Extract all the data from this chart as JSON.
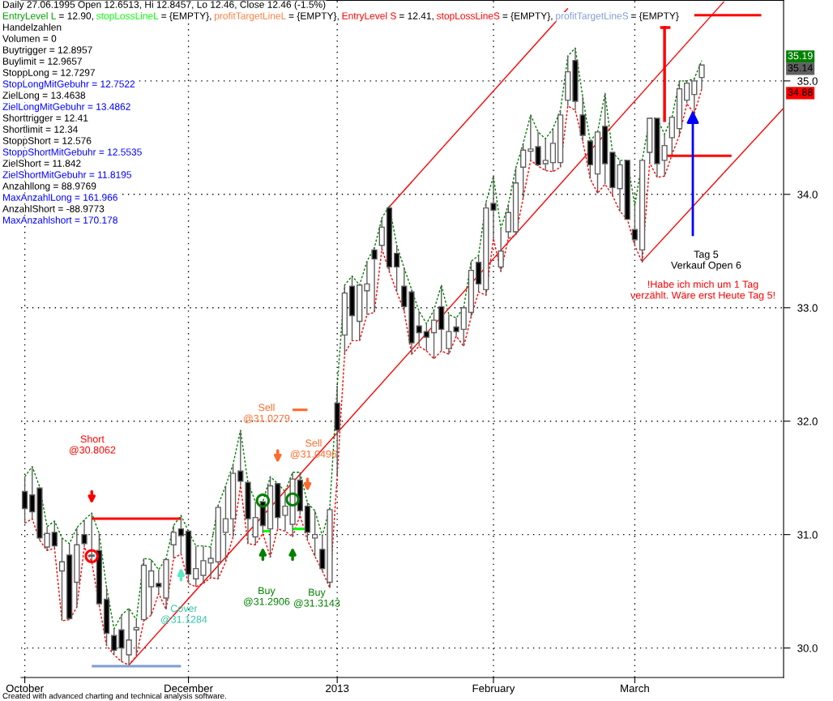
{
  "chart_data": {
    "type": "candlestick",
    "title": "Daily 27.06.1995 Open 12.6513, Hi 12.8457, Lo 12.46, Close 12.46 (-1.5%)",
    "categories": [
      "October",
      null,
      null,
      null,
      null,
      null,
      null,
      null,
      null,
      null,
      null,
      null,
      null,
      null,
      null,
      null,
      null,
      null,
      null,
      null,
      null,
      null,
      "December",
      null,
      null,
      null,
      null,
      null,
      null,
      null,
      null,
      null,
      null,
      null,
      null,
      null,
      null,
      null,
      null,
      null,
      null,
      null,
      "2013",
      null,
      null,
      null,
      null,
      null,
      null,
      null,
      null,
      null,
      null,
      null,
      null,
      null,
      null,
      null,
      null,
      null,
      null,
      null,
      null,
      "February",
      null,
      null,
      null,
      null,
      null,
      null,
      null,
      null,
      null,
      null,
      null,
      null,
      null,
      null,
      null,
      null,
      null,
      null,
      "March",
      null,
      null,
      null,
      null,
      null,
      null,
      null,
      null,
      null,
      null,
      null,
      null,
      null,
      null,
      null,
      null,
      null,
      null,
      null,
      null
    ],
    "ohlc": [
      [
        31.38,
        31.51,
        31.1,
        31.23
      ],
      [
        31.35,
        31.6,
        31.14,
        31.2
      ],
      [
        31.41,
        31.42,
        30.95,
        30.97
      ],
      [
        30.89,
        31.07,
        30.86,
        31.01
      ],
      [
        31.02,
        31.12,
        30.88,
        30.9
      ],
      [
        30.68,
        30.97,
        30.24,
        30.76
      ],
      [
        30.82,
        30.92,
        30.25,
        30.26
      ],
      [
        30.58,
        31.06,
        30.36,
        30.91
      ],
      [
        31.0,
        31.13,
        30.89,
        30.92
      ],
      [
        30.81,
        31.19,
        30.76,
        30.82
      ],
      [
        30.86,
        31.01,
        30.38,
        30.39
      ],
      [
        30.43,
        30.53,
        30.02,
        30.13
      ],
      [
        30.11,
        30.17,
        29.94,
        29.98
      ],
      [
        30.16,
        30.29,
        29.88,
        30.0
      ],
      [
        29.94,
        30.35,
        29.85,
        30.07
      ],
      [
        30.16,
        30.25,
        29.93,
        30.18
      ],
      [
        30.25,
        30.79,
        30.24,
        30.73
      ],
      [
        30.54,
        30.78,
        30.29,
        30.68
      ],
      [
        30.57,
        30.69,
        30.48,
        30.54
      ],
      [
        30.44,
        30.79,
        30.34,
        30.78
      ],
      [
        30.91,
        31.08,
        30.79,
        31.02
      ],
      [
        31.05,
        31.17,
        30.83,
        30.99
      ],
      [
        31.03,
        31.03,
        30.57,
        30.65
      ],
      [
        30.61,
        30.9,
        30.54,
        30.7
      ],
      [
        30.64,
        30.9,
        30.57,
        30.77
      ],
      [
        30.75,
        30.89,
        30.62,
        30.79
      ],
      [
        30.76,
        31.26,
        30.61,
        31.24
      ],
      [
        31.02,
        31.43,
        30.76,
        31.14
      ],
      [
        31.14,
        31.62,
        30.98,
        31.54
      ],
      [
        31.56,
        31.92,
        31.43,
        31.47
      ],
      [
        31.46,
        31.46,
        30.92,
        31.14
      ],
      [
        30.98,
        31.29,
        30.91,
        31.15
      ],
      [
        31.29,
        31.29,
        31.01,
        31.08
      ],
      [
        31.05,
        31.51,
        30.8,
        31.43
      ],
      [
        31.45,
        31.45,
        31.05,
        31.15
      ],
      [
        31.17,
        31.38,
        31.03,
        31.25
      ],
      [
        31.09,
        31.55,
        30.98,
        31.49
      ],
      [
        31.48,
        31.55,
        31.17,
        31.21
      ],
      [
        31.25,
        31.28,
        30.95,
        31.02
      ],
      [
        30.97,
        31.21,
        30.81,
        31.0
      ],
      [
        30.87,
        30.99,
        30.68,
        30.7
      ],
      [
        30.58,
        31.24,
        30.53,
        31.22
      ],
      [
        32.16,
        32.31,
        31.52,
        31.92
      ],
      [
        32.76,
        33.2,
        32.6,
        33.13
      ],
      [
        33.19,
        33.28,
        32.71,
        32.93
      ],
      [
        32.88,
        33.2,
        32.71,
        33.2
      ],
      [
        33.15,
        33.41,
        32.94,
        33.21
      ],
      [
        33.51,
        33.53,
        32.96,
        33.43
      ],
      [
        33.55,
        33.79,
        33.52,
        33.71
      ],
      [
        33.88,
        33.9,
        33.32,
        33.36
      ],
      [
        33.48,
        33.55,
        33.14,
        33.36
      ],
      [
        33.19,
        33.35,
        32.97,
        33.01
      ],
      [
        33.14,
        33.16,
        32.59,
        32.69
      ],
      [
        32.84,
        32.97,
        32.66,
        32.78
      ],
      [
        32.79,
        32.86,
        32.62,
        32.74
      ],
      [
        32.78,
        32.98,
        32.55,
        32.89
      ],
      [
        33.01,
        33.2,
        32.62,
        32.81
      ],
      [
        32.64,
        32.94,
        32.59,
        32.79
      ],
      [
        32.83,
        32.91,
        32.75,
        32.79
      ],
      [
        32.81,
        33.0,
        32.66,
        33.0
      ],
      [
        32.96,
        33.41,
        32.92,
        33.33
      ],
      [
        33.4,
        33.46,
        33.14,
        33.21
      ],
      [
        33.16,
        33.93,
        33.11,
        33.88
      ],
      [
        33.92,
        34.16,
        33.61,
        33.86
      ],
      [
        33.36,
        33.7,
        33.32,
        33.5
      ],
      [
        33.67,
        33.91,
        33.61,
        33.84
      ],
      [
        33.67,
        34.23,
        33.64,
        34.1
      ],
      [
        34.24,
        34.45,
        33.97,
        34.39
      ],
      [
        34.38,
        34.7,
        34.3,
        34.4
      ],
      [
        34.42,
        34.55,
        34.25,
        34.26
      ],
      [
        34.27,
        34.49,
        34.21,
        34.3
      ],
      [
        34.28,
        34.58,
        34.2,
        34.45
      ],
      [
        34.28,
        34.74,
        34.24,
        34.7
      ],
      [
        34.83,
        35.22,
        34.78,
        35.08
      ],
      [
        35.18,
        35.29,
        34.74,
        34.82
      ],
      [
        34.7,
        34.86,
        34.47,
        34.52
      ],
      [
        34.47,
        34.47,
        34.14,
        34.26
      ],
      [
        34.18,
        34.55,
        34.01,
        34.55
      ],
      [
        34.6,
        34.89,
        34.09,
        34.27
      ],
      [
        34.37,
        34.37,
        33.99,
        34.06
      ],
      [
        34.05,
        34.3,
        33.85,
        34.26
      ],
      [
        34.3,
        34.3,
        33.78,
        33.78
      ],
      [
        33.69,
        33.9,
        33.55,
        33.6
      ],
      [
        33.51,
        34.3,
        33.4,
        34.3
      ],
      [
        34.37,
        34.67,
        34.28,
        34.67
      ],
      [
        34.67,
        34.67,
        34.15,
        34.27
      ],
      [
        34.3,
        34.53,
        34.16,
        34.43
      ],
      [
        34.5,
        34.68,
        34.35,
        34.68
      ],
      [
        34.58,
        35.0,
        34.52,
        34.93
      ],
      [
        34.83,
        35.0,
        34.8,
        34.98
      ],
      [
        34.88,
        35.02,
        34.71,
        35.0
      ],
      [
        35.03,
        35.14,
        34.93,
        35.14
      ],
      null,
      null,
      null,
      null,
      null,
      null,
      null,
      null,
      null,
      null,
      null
    ],
    "series": [
      {
        "type": "line",
        "color": "#008000",
        "line_style": "dashed",
        "values": [
          31.51,
          31.6,
          31.42,
          31.07,
          31.12,
          30.97,
          30.92,
          31.06,
          31.13,
          31.19,
          31.01,
          30.53,
          30.17,
          30.29,
          30.35,
          30.25,
          30.79,
          30.78,
          30.69,
          30.79,
          31.08,
          31.17,
          31.03,
          30.9,
          30.9,
          30.89,
          31.26,
          31.43,
          31.62,
          31.92,
          31.46,
          31.29,
          31.29,
          31.51,
          31.45,
          31.38,
          31.55,
          31.55,
          31.28,
          31.21,
          30.99,
          31.24,
          32.31,
          33.2,
          33.28,
          33.2,
          33.41,
          33.53,
          33.79,
          33.9,
          33.55,
          33.35,
          33.16,
          32.97,
          32.86,
          32.98,
          33.2,
          32.94,
          32.91,
          33.0,
          33.41,
          33.46,
          33.93,
          34.16,
          33.7,
          33.91,
          34.23,
          34.45,
          34.7,
          34.55,
          34.49,
          34.58,
          34.74,
          35.22,
          35.29,
          34.86,
          34.47,
          34.55,
          34.89,
          34.37,
          34.3,
          34.3,
          33.9,
          34.3,
          34.67,
          34.67,
          34.53,
          34.68,
          35.0,
          35.0,
          35.02,
          35.18,
          null,
          null,
          null,
          null,
          null,
          null,
          null,
          null,
          null,
          null,
          null
        ]
      },
      {
        "type": "line",
        "color": "#ff0000",
        "line_style": "dashed",
        "values": [
          31.1,
          31.14,
          30.95,
          30.86,
          30.88,
          30.24,
          30.25,
          30.36,
          30.89,
          30.76,
          30.38,
          30.02,
          29.94,
          29.88,
          29.85,
          29.93,
          30.24,
          30.29,
          30.48,
          30.34,
          30.79,
          30.83,
          30.57,
          30.54,
          30.57,
          30.62,
          30.61,
          30.76,
          30.98,
          31.43,
          30.92,
          30.91,
          31.01,
          30.8,
          31.05,
          31.03,
          30.98,
          31.17,
          30.95,
          30.81,
          30.68,
          30.53,
          31.52,
          32.6,
          32.71,
          32.71,
          32.94,
          32.96,
          33.52,
          33.32,
          33.14,
          32.97,
          32.59,
          32.66,
          32.62,
          32.55,
          32.62,
          32.59,
          32.75,
          32.66,
          32.92,
          33.14,
          33.11,
          33.61,
          33.32,
          33.61,
          33.64,
          33.97,
          34.3,
          34.25,
          34.21,
          34.2,
          34.24,
          34.78,
          34.74,
          34.47,
          34.14,
          34.01,
          34.09,
          33.99,
          33.85,
          33.78,
          33.55,
          33.4,
          34.28,
          34.15,
          34.16,
          34.35,
          34.52,
          34.8,
          34.71,
          34.93,
          null,
          null,
          null,
          null,
          null,
          null,
          null,
          null,
          null,
          null,
          null
        ]
      },
      {
        "type": "line",
        "color": "#ff0000",
        "line_style": "solid",
        "values": [
          null,
          null,
          null,
          null,
          null,
          null,
          null,
          null,
          null,
          null,
          null,
          null,
          null,
          null,
          null,
          null,
          null,
          null,
          null,
          null,
          null,
          null,
          null,
          null,
          null,
          null,
          null,
          null,
          null,
          null,
          null,
          null,
          null,
          null,
          null,
          null,
          null,
          null,
          null,
          null,
          null,
          null,
          null,
          null,
          null,
          null,
          null,
          null,
          null,
          33.89,
          null,
          null,
          null,
          null,
          null,
          null,
          null,
          null,
          null,
          null,
          null,
          null,
          null,
          null,
          null,
          null,
          null,
          null,
          null,
          null,
          null,
          null,
          null,
          35.64,
          null,
          null,
          null,
          null,
          null,
          null,
          null,
          null,
          null,
          null,
          null,
          null,
          null,
          null,
          null,
          null,
          null,
          null,
          null,
          null,
          null,
          null,
          null,
          null,
          null,
          null,
          null,
          null,
          null
        ]
      },
      {
        "type": "line",
        "color": "#ff0000",
        "line_style": "solid",
        "values": [
          null,
          null,
          null,
          null,
          null,
          null,
          null,
          null,
          null,
          null,
          null,
          null,
          null,
          null,
          29.85,
          null,
          null,
          null,
          null,
          null,
          null,
          null,
          null,
          null,
          null,
          null,
          null,
          null,
          null,
          null,
          null,
          null,
          null,
          null,
          null,
          null,
          null,
          null,
          null,
          null,
          null,
          null,
          null,
          null,
          null,
          null,
          null,
          null,
          null,
          null,
          null,
          null,
          null,
          null,
          null,
          null,
          null,
          null,
          null,
          null,
          null,
          null,
          null,
          null,
          null,
          null,
          null,
          null,
          null,
          null,
          null,
          null,
          null,
          null,
          null,
          null,
          null,
          null,
          null,
          null,
          null,
          null,
          null,
          null,
          null,
          null,
          null,
          null,
          null,
          null,
          null,
          null,
          null,
          null,
          35.7,
          null,
          null,
          null,
          null,
          null,
          null,
          null,
          null
        ]
      },
      {
        "type": "line",
        "color": "#ff0000",
        "line_style": "solid",
        "values": [
          null,
          null,
          null,
          null,
          null,
          null,
          null,
          null,
          null,
          null,
          null,
          null,
          null,
          null,
          null,
          null,
          null,
          null,
          null,
          null,
          null,
          null,
          null,
          null,
          null,
          null,
          null,
          null,
          null,
          null,
          null,
          null,
          null,
          null,
          null,
          null,
          null,
          null,
          null,
          null,
          null,
          null,
          null,
          null,
          null,
          null,
          null,
          null,
          null,
          null,
          null,
          null,
          null,
          null,
          null,
          null,
          null,
          null,
          null,
          null,
          null,
          null,
          null,
          null,
          null,
          null,
          null,
          null,
          null,
          null,
          null,
          null,
          null,
          null,
          null,
          null,
          null,
          null,
          null,
          null,
          null,
          null,
          null,
          33.41,
          null,
          null,
          null,
          null,
          null,
          null,
          null,
          null,
          null,
          null,
          null,
          null,
          null,
          null,
          null,
          null,
          null,
          null,
          34.76
        ]
      },
      {
        "type": "line",
        "color": "#ff0000",
        "line_style": "solid",
        "values": [
          null,
          null,
          null,
          null,
          null,
          null,
          null,
          null,
          null,
          31.14,
          null,
          null,
          null,
          null,
          null,
          null,
          null,
          null,
          null,
          null,
          null,
          31.14,
          null,
          null,
          null,
          null,
          null,
          null,
          null,
          null,
          null,
          null,
          null,
          null,
          null,
          null,
          null,
          null,
          null,
          null,
          null,
          null,
          null,
          null,
          null,
          null,
          null,
          null,
          null,
          null,
          null,
          null,
          null,
          null,
          null,
          null,
          null,
          null,
          null,
          null,
          null,
          null,
          null,
          null,
          null,
          null,
          null,
          null,
          null,
          null,
          null,
          null,
          null,
          null,
          null,
          null,
          null,
          null,
          null,
          null,
          null,
          null,
          null,
          null,
          null,
          null,
          null,
          null,
          null,
          null,
          null,
          null,
          null,
          null,
          null,
          null,
          null,
          null,
          null,
          null,
          null,
          null,
          null
        ]
      },
      {
        "type": "line",
        "color": "#7f9fcf",
        "line_style": "solid",
        "values": [
          null,
          null,
          null,
          null,
          null,
          null,
          null,
          null,
          null,
          29.84,
          null,
          null,
          null,
          null,
          null,
          null,
          null,
          null,
          null,
          null,
          null,
          29.84,
          null,
          null,
          null,
          null,
          null,
          null,
          null,
          null,
          null,
          null,
          null,
          null,
          null,
          null,
          null,
          null,
          null,
          null,
          null,
          null,
          null,
          null,
          null,
          null,
          null,
          null,
          null,
          null,
          null,
          null,
          null,
          null,
          null,
          null,
          null,
          null,
          null,
          null,
          null,
          null,
          null,
          null,
          null,
          null,
          null,
          null,
          null,
          null,
          null,
          null,
          null,
          null,
          null,
          null,
          null,
          null,
          null,
          null,
          null,
          null,
          null,
          null,
          null,
          null,
          null,
          null,
          null,
          null,
          null,
          null,
          null,
          null,
          null,
          null,
          null,
          null,
          null,
          null,
          null,
          null,
          null
        ]
      },
      {
        "type": "line",
        "color": "#ff6a2a",
        "line_style": "solid",
        "values": [
          null,
          null,
          null,
          null,
          null,
          null,
          null,
          null,
          null,
          null,
          null,
          null,
          null,
          null,
          null,
          null,
          null,
          null,
          null,
          null,
          null,
          null,
          null,
          null,
          null,
          null,
          null,
          null,
          null,
          null,
          null,
          null,
          null,
          null,
          null,
          null,
          32.1,
          null,
          32.1,
          null,
          null,
          null,
          null,
          null,
          null,
          null,
          null,
          null,
          null,
          null,
          null,
          null,
          null,
          null,
          null,
          null,
          null,
          null,
          null,
          null,
          null,
          null,
          null,
          null,
          null,
          null,
          null,
          null,
          null,
          null,
          null,
          null,
          null,
          null,
          null,
          null,
          null,
          null,
          null,
          null,
          null,
          null,
          null,
          null,
          null,
          null,
          null,
          null,
          null,
          null,
          null,
          null,
          null,
          null,
          null,
          null,
          null,
          null,
          null,
          null,
          null,
          null,
          null
        ]
      },
      {
        "type": "line",
        "color": "#00ff00",
        "line_style": "solid",
        "values": [
          null,
          null,
          null,
          null,
          null,
          null,
          null,
          null,
          null,
          null,
          null,
          null,
          null,
          null,
          null,
          null,
          null,
          null,
          null,
          null,
          null,
          null,
          null,
          null,
          null,
          null,
          null,
          null,
          null,
          null,
          null,
          null,
          31.03,
          31.03,
          null,
          null,
          null,
          null,
          null,
          null,
          null,
          null,
          null,
          null,
          null,
          null,
          null,
          null,
          null,
          null,
          null,
          null,
          null,
          null,
          null,
          null,
          null,
          null,
          null,
          null,
          null,
          null,
          null,
          null,
          null,
          null,
          null,
          null,
          null,
          null,
          null,
          null,
          null,
          null,
          null,
          null,
          null,
          null,
          null,
          null,
          null,
          null,
          null,
          null,
          null,
          null,
          null,
          null,
          null,
          null,
          null,
          null,
          null,
          null,
          null,
          null,
          null,
          null,
          null,
          null,
          null,
          null,
          null
        ]
      },
      {
        "type": "line",
        "color": "#00ff00",
        "line_style": "solid",
        "values": [
          null,
          null,
          null,
          null,
          null,
          null,
          null,
          null,
          null,
          null,
          null,
          null,
          null,
          null,
          null,
          null,
          null,
          null,
          null,
          null,
          null,
          null,
          null,
          null,
          null,
          null,
          null,
          null,
          null,
          null,
          null,
          null,
          null,
          null,
          null,
          null,
          31.05,
          null,
          31.05,
          null,
          null,
          null,
          null,
          null,
          null,
          null,
          null,
          null,
          null,
          null,
          null,
          null,
          null,
          null,
          null,
          null,
          null,
          null,
          null,
          null,
          null,
          null,
          null,
          null,
          null,
          null,
          null,
          null,
          null,
          null,
          null,
          null,
          null,
          null,
          null,
          null,
          null,
          null,
          null,
          null,
          null,
          null,
          null,
          null,
          null,
          null,
          null,
          null,
          null,
          null,
          null,
          null,
          null,
          null,
          null,
          null,
          null,
          null,
          null,
          null,
          null,
          null,
          null
        ]
      },
      {
        "type": "line",
        "color": "#ff0000",
        "line_style": "solid",
        "values": [
          null,
          null,
          null,
          null,
          null,
          null,
          null,
          null,
          null,
          null,
          null,
          null,
          null,
          null,
          null,
          null,
          null,
          null,
          null,
          null,
          null,
          null,
          null,
          null,
          null,
          null,
          null,
          null,
          null,
          null,
          null,
          null,
          null,
          null,
          null,
          null,
          null,
          null,
          null,
          null,
          null,
          null,
          null,
          null,
          null,
          null,
          null,
          null,
          null,
          null,
          null,
          null,
          null,
          null,
          null,
          null,
          null,
          null,
          null,
          null,
          null,
          null,
          null,
          null,
          null,
          null,
          null,
          null,
          null,
          null,
          null,
          null,
          null,
          null,
          null,
          null,
          null,
          null,
          null,
          null,
          null,
          null,
          null,
          null,
          null,
          null,
          null,
          null,
          null,
          null,
          35.58,
          null,
          null,
          null,
          null,
          null,
          null,
          null,
          null,
          35.58,
          null,
          null,
          null
        ]
      },
      {
        "type": "line",
        "color": "#ff0000",
        "line_style": "solid",
        "values": [
          null,
          null,
          null,
          null,
          null,
          null,
          null,
          null,
          null,
          null,
          null,
          null,
          null,
          null,
          null,
          null,
          null,
          null,
          null,
          null,
          null,
          null,
          null,
          null,
          null,
          null,
          null,
          null,
          null,
          null,
          null,
          null,
          null,
          null,
          null,
          null,
          null,
          null,
          null,
          null,
          null,
          null,
          null,
          null,
          null,
          null,
          null,
          null,
          null,
          null,
          null,
          null,
          null,
          null,
          null,
          null,
          null,
          null,
          null,
          null,
          null,
          null,
          null,
          null,
          null,
          null,
          null,
          null,
          null,
          null,
          null,
          null,
          null,
          null,
          null,
          null,
          null,
          null,
          null,
          null,
          null,
          null,
          null,
          null,
          null,
          null,
          34.34,
          null,
          null,
          null,
          null,
          null,
          null,
          null,
          null,
          34.34,
          null,
          null,
          null,
          null,
          null,
          null,
          null
        ]
      },
      {
        "type": "scatter",
        "marker": "circle",
        "color": "#ff0000",
        "values": [
          null,
          null,
          null,
          null,
          null,
          null,
          null,
          null,
          null,
          30.81,
          null,
          null,
          null,
          null,
          null,
          null,
          null,
          null,
          null,
          null,
          null,
          null,
          null,
          null,
          null,
          null,
          null,
          null,
          null,
          null,
          null,
          null,
          null,
          null,
          null,
          null,
          null,
          null,
          null,
          null,
          null,
          null,
          null,
          null,
          null,
          null,
          null,
          null,
          null,
          null,
          null,
          null,
          null,
          null,
          null,
          null,
          null,
          null,
          null,
          null,
          null,
          null,
          null,
          null,
          null,
          null,
          null,
          null,
          null,
          null,
          null,
          null,
          null,
          null,
          null,
          null,
          null,
          null,
          null,
          null,
          null,
          null,
          null,
          null,
          null,
          null,
          null,
          null,
          null,
          null,
          null,
          null,
          null,
          null,
          null,
          null,
          null,
          null,
          null,
          null,
          null,
          null,
          null
        ]
      },
      {
        "type": "scatter",
        "marker": "circle",
        "color": "#008000",
        "values": [
          null,
          null,
          null,
          null,
          null,
          null,
          null,
          null,
          null,
          null,
          null,
          null,
          null,
          null,
          null,
          null,
          null,
          null,
          null,
          null,
          null,
          null,
          null,
          null,
          null,
          null,
          null,
          null,
          null,
          null,
          null,
          null,
          31.3,
          null,
          null,
          null,
          31.31,
          null,
          null,
          null,
          null,
          null,
          null,
          null,
          null,
          null,
          null,
          null,
          null,
          null,
          null,
          null,
          null,
          null,
          null,
          null,
          null,
          null,
          null,
          null,
          null,
          null,
          null,
          null,
          null,
          null,
          null,
          null,
          null,
          null,
          null,
          null,
          null,
          null,
          null,
          null,
          null,
          null,
          null,
          null,
          null,
          null,
          null,
          null,
          null,
          null,
          null,
          null,
          null,
          null,
          null,
          null,
          null,
          null,
          null,
          null,
          null,
          null,
          null,
          null,
          null,
          null,
          null
        ]
      }
    ],
    "ylim": [
      29.74,
      35.71
    ],
    "yticks": [
      {
        "value": 30,
        "label": "30.0"
      },
      {
        "value": 31,
        "label": "31.0"
      },
      {
        "value": 32,
        "label": "32.0"
      },
      {
        "value": 33,
        "label": "33.0"
      },
      {
        "value": 34,
        "label": "34.0"
      },
      {
        "value": 35,
        "label": "35.0"
      }
    ],
    "grid": true,
    "annotations": [
      "EntryLevel L",
      " = 12.90, ",
      "stopLossLineL",
      " = {EMPTY}, ",
      "profitTargetLineL",
      " = {EMPTY}, ",
      "EntryLevel S",
      " = 12.41, ",
      "stopLossLineS",
      " = {EMPTY}, ",
      "profitTargetLineS",
      " = {EMPTY}",
      "Handelzahlen",
      "Volumen = 0",
      "Buytrigger = 12.8957",
      "Buylimit = 12.9657",
      "StoppLong = 12.7297",
      "StopLongMitGebuhr = 12.7522",
      "ZielLong = 13.4638",
      "ZielLongMitGebuhr = 13.4862",
      "Shorttrigger = 12.41",
      "Shortlimit = 12.34",
      "StoppShort = 12.576",
      "StoppShortMitGebuhr = 12.5535",
      "ZielShort = 11.842",
      "ZielShortMitGebuhr = 11.8195",
      "Anzahllong = 88.9769",
      "MaxAnzahlLong = 161.966",
      "AnzahlShort = -88.9773",
      "MaxAnzahlshort = 170.178",
      "Short\n@30.8062",
      "Sell\n@31.0279",
      "Sell\n@31.0496",
      "Cover\n@31.1284",
      "Buy\n@31.2906",
      "Buy\n@31.3143",
      "Tag 5\nVerkauf Open 6",
      "!Habe ich mich um 1 Tag\nverzählt. Wäre erst Heute Tag 5!",
      "35.19",
      "35.14",
      "34.88",
      "Created with advanced charting and technical analysis software."
    ]
  }
}
